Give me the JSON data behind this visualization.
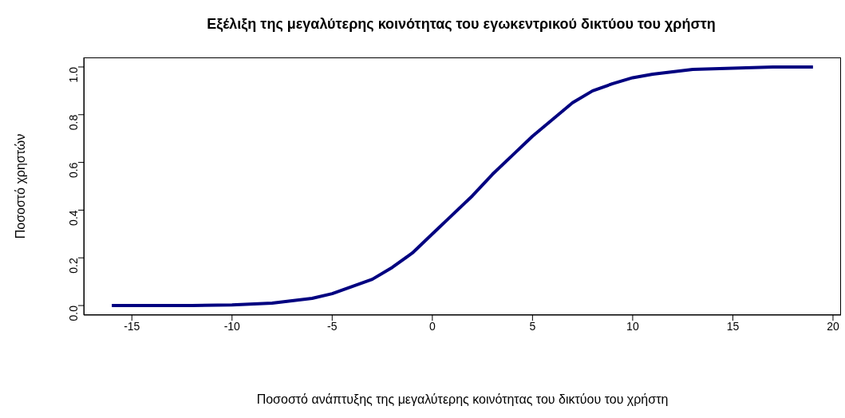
{
  "chart_data": {
    "type": "line",
    "title": "Εξέλιξη  της μεγαλύτερης κοινότητας του εγωκεντρικού  δικτύου του χρήστη",
    "xlabel": "Ποσοστό ανάπτυξης της μεγαλύτερης κοινότητας του δικτύου του χρήστη",
    "ylabel": "Ποσοστό χρηστών",
    "x": [
      -16,
      -14,
      -12,
      -10,
      -8,
      -7,
      -6,
      -5,
      -4,
      -3,
      -2,
      -1,
      0,
      1,
      2,
      3,
      4,
      5,
      6,
      7,
      8,
      9,
      10,
      11,
      12,
      13,
      15,
      17,
      19
    ],
    "series": [
      {
        "color": "#000080",
        "values": [
          0,
          0,
          0,
          0.003,
          0.01,
          0.02,
          0.03,
          0.05,
          0.08,
          0.11,
          0.16,
          0.22,
          0.3,
          0.38,
          0.46,
          0.55,
          0.63,
          0.71,
          0.78,
          0.85,
          0.9,
          0.93,
          0.955,
          0.97,
          0.98,
          0.99,
          0.995,
          1.0,
          1.0
        ]
      }
    ],
    "xlim": [
      -17.4,
      20.4
    ],
    "ylim": [
      -0.04,
      1.04
    ],
    "xticks": [
      -15,
      -10,
      -5,
      0,
      5,
      10,
      15,
      20
    ],
    "yticks": [
      {
        "value": 0,
        "label": "0.0"
      },
      {
        "value": 0.2,
        "label": "0.2"
      },
      {
        "value": 0.4,
        "label": "0.4"
      },
      {
        "value": 0.6,
        "label": "0.6"
      },
      {
        "value": 0.8,
        "label": "0.8"
      },
      {
        "value": 1,
        "label": "1.0"
      }
    ],
    "grid": false,
    "legend": false,
    "marker": "none",
    "line_style": "solid"
  }
}
